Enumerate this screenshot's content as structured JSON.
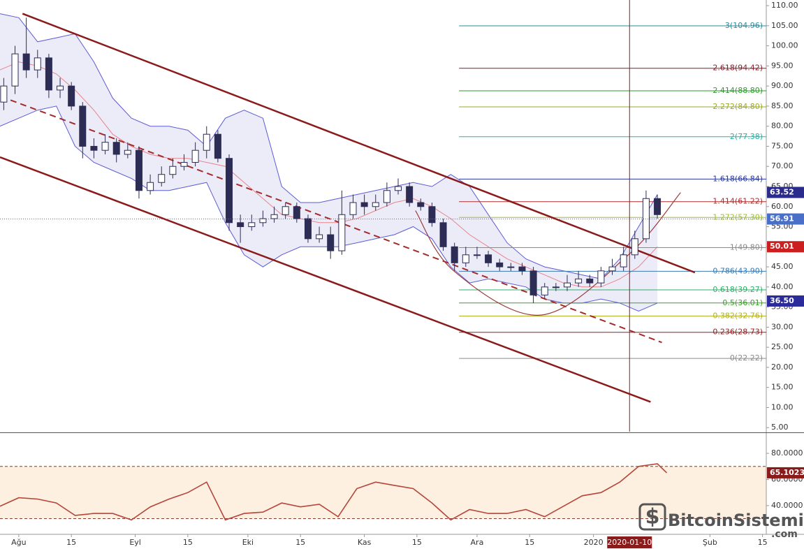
{
  "chart_data": [
    {
      "type": "candlestick",
      "x": [
        -4,
        -1,
        2,
        5,
        8,
        11,
        14,
        17,
        20,
        23,
        26,
        29,
        32,
        35,
        38,
        41,
        44,
        47,
        50,
        53,
        56,
        59,
        62,
        65,
        68,
        71,
        74,
        77,
        80,
        83,
        86,
        89,
        92,
        95,
        98,
        101,
        104,
        107,
        110,
        113,
        116,
        119,
        122,
        125,
        128,
        131,
        134,
        137,
        140,
        143,
        146,
        149,
        152,
        155,
        158,
        161,
        164,
        167,
        170
      ],
      "open": [
        86,
        90,
        98,
        94,
        97,
        89,
        90,
        85,
        75,
        74,
        76,
        73,
        74,
        64,
        66,
        68,
        70,
        71,
        74,
        78,
        72,
        56,
        55,
        56,
        57,
        58,
        60,
        57,
        52,
        53,
        49,
        58,
        61,
        60,
        61,
        64,
        65,
        61,
        60,
        56,
        50,
        46,
        48,
        48,
        46,
        45,
        45,
        44,
        38,
        40,
        40,
        41,
        42,
        41,
        44,
        45,
        48,
        52,
        62
      ],
      "high": [
        92,
        100,
        107,
        99,
        98,
        92,
        91,
        86,
        77,
        78,
        77,
        76,
        75,
        68,
        70,
        72,
        73,
        76,
        80,
        79,
        73,
        58,
        58,
        59,
        60,
        61,
        61,
        58,
        55,
        55,
        64,
        63,
        63,
        63,
        66,
        67,
        66,
        62,
        61,
        57,
        51,
        50,
        50,
        49,
        47,
        46,
        46,
        45,
        41,
        41,
        43,
        44,
        43,
        45,
        47,
        50,
        54,
        64,
        63
      ],
      "low": [
        84,
        88,
        92,
        92,
        87,
        87,
        84,
        72,
        72,
        73,
        71,
        72,
        62,
        63,
        65,
        67,
        69,
        70,
        72,
        71,
        54,
        51,
        54,
        55,
        56,
        57,
        56,
        51,
        51,
        47,
        48,
        57,
        58,
        59,
        60,
        63,
        60,
        59,
        55,
        49,
        44,
        45,
        47,
        45,
        44,
        44,
        43,
        36,
        37,
        39,
        39,
        40,
        40,
        40,
        43,
        44,
        47,
        51,
        57
      ],
      "close": [
        90,
        98,
        94,
        97,
        89,
        90,
        85,
        75,
        74,
        76,
        73,
        74,
        64,
        66,
        68,
        70,
        71,
        74,
        78,
        72,
        56,
        55,
        56,
        57,
        58,
        60,
        57,
        52,
        53,
        49,
        58,
        61,
        60,
        61,
        64,
        65,
        61,
        60,
        56,
        50,
        46,
        48,
        48,
        46,
        45,
        45,
        44,
        38,
        40,
        40,
        41,
        42,
        41,
        44,
        45,
        48,
        52,
        62,
        58
      ],
      "up_color": "#ffffff",
      "down_color": "#2c2c54",
      "xlim": [
        -5,
        199
      ],
      "ylim": [
        4,
        111.4
      ],
      "yticks": [
        {
          "value": 5,
          "label": "5.00"
        },
        {
          "value": 10,
          "label": "10.00"
        },
        {
          "value": 15,
          "label": "15.00"
        },
        {
          "value": 20,
          "label": "20.00"
        },
        {
          "value": 25,
          "label": "25.00"
        },
        {
          "value": 30,
          "label": "30.00"
        },
        {
          "value": 35,
          "label": "35.00"
        },
        {
          "value": 40,
          "label": "40.00"
        },
        {
          "value": 45,
          "label": "45.00"
        },
        {
          "value": 50,
          "label": "50.00"
        },
        {
          "value": 55,
          "label": "55.00"
        },
        {
          "value": 60,
          "label": "60.00"
        },
        {
          "value": 65,
          "label": "65.00"
        },
        {
          "value": 70,
          "label": "70.00"
        },
        {
          "value": 75,
          "label": "75.00"
        },
        {
          "value": 80,
          "label": "80.00"
        },
        {
          "value": 85,
          "label": "85.00"
        },
        {
          "value": 90,
          "label": "90.00"
        },
        {
          "value": 95,
          "label": "95.00"
        },
        {
          "value": 100,
          "label": "100.00"
        },
        {
          "value": 105,
          "label": "105.00"
        },
        {
          "value": 110,
          "label": "110.00"
        }
      ],
      "bollinger": {
        "x": [
          -5,
          0,
          5,
          10,
          15,
          20,
          25,
          30,
          35,
          40,
          45,
          50,
          55,
          60,
          65,
          70,
          75,
          80,
          85,
          90,
          95,
          100,
          105,
          110,
          115,
          120,
          125,
          130,
          135,
          140,
          145,
          150,
          155,
          160,
          165,
          170
        ],
        "upper": [
          108,
          107,
          101,
          102,
          103,
          96,
          87,
          82,
          80,
          80,
          79,
          75,
          82,
          84,
          82,
          65,
          61,
          61,
          62,
          63,
          64,
          65,
          66,
          65,
          68,
          65,
          58,
          51,
          47,
          45,
          44,
          43,
          42,
          47,
          55,
          63
        ],
        "middle": [
          94,
          96,
          95,
          93,
          89,
          84,
          78,
          75,
          73,
          72,
          72,
          71,
          70,
          66,
          62,
          58,
          57,
          56,
          56,
          57,
          59,
          61,
          62,
          60,
          57,
          53,
          50,
          47,
          45,
          43,
          41,
          40,
          40,
          42,
          45,
          50
        ],
        "lower": [
          80,
          82,
          84,
          85,
          75,
          71,
          69,
          67,
          64,
          64,
          65,
          66,
          56,
          48,
          45,
          48,
          50,
          50,
          50,
          51,
          52,
          53,
          55,
          52,
          45,
          41,
          42,
          41,
          40,
          37,
          36,
          36,
          37,
          36,
          34,
          36
        ],
        "color": "#5b5bd6",
        "fill": "#e4e4f6",
        "middle_color": "#e8838a"
      },
      "trendlines": [
        {
          "x": [
            1,
            180
          ],
          "y": [
            108,
            43.6
          ],
          "color": "#8b1a1a",
          "dashed": false
        },
        {
          "x": [
            -5,
            168.2
          ],
          "y": [
            72.3,
            11.4
          ],
          "color": "#8b1a1a",
          "dashed": false
        },
        {
          "x": [
            -2.2,
            171.2
          ],
          "y": [
            86.5,
            26.2
          ],
          "color": "#a52a2a",
          "dashed": true
        }
      ],
      "arc": {
        "x": [
          105.6,
          115.8,
          139,
          162.3,
          176.2
        ],
        "y": [
          59,
          44,
          33,
          48,
          63.5
        ],
        "color": "#9b3a3a"
      },
      "fib_start": 117.2,
      "fib_levels": [
        {
          "value": 104.96,
          "label": "3(104.96)",
          "color": "#2a8a9a"
        },
        {
          "value": 94.42,
          "label": "2.618(94.42)",
          "color": "#8b1a2a"
        },
        {
          "value": 88.8,
          "label": "2.414(88.80)",
          "color": "#2e9a2e"
        },
        {
          "value": 84.8,
          "label": "2.272(84.80)",
          "color": "#9aa82a"
        },
        {
          "value": 77.38,
          "label": "2(77.38)",
          "color": "#2ab0a0"
        },
        {
          "value": 66.84,
          "label": "1.618(66.84)",
          "color": "#2a3a9a"
        },
        {
          "value": 61.22,
          "label": "1.414(61.22)",
          "color": "#b02a2a"
        },
        {
          "value": 57.3,
          "label": "1.272(57.30)",
          "color": "#9ac02a"
        },
        {
          "value": 49.8,
          "label": "1(49.80)",
          "color": "#8a8a8a"
        },
        {
          "value": 43.9,
          "label": "0.786(43.90)",
          "color": "#3a7ab0"
        },
        {
          "value": 39.27,
          "label": "0.618(39.27)",
          "color": "#2ab06a"
        },
        {
          "value": 36.01,
          "label": "0.5(36.01)",
          "color": "#3aa02a"
        },
        {
          "value": 32.76,
          "label": "0.382(32.76)",
          "color": "#b0b02a"
        },
        {
          "value": 28.73,
          "label": "0.236(28.73)",
          "color": "#9a1a1a"
        },
        {
          "value": 22.22,
          "label": "0(22.22)",
          "color": "#8a8a8a"
        }
      ],
      "price_tags": [
        {
          "value": 63.52,
          "color": "#2b2b8c"
        },
        {
          "value": 56.91,
          "color": "#4a6fc8",
          "line": true
        },
        {
          "value": 50.01,
          "color": "#cc1f1f"
        },
        {
          "value": 36.5,
          "label": "36.50",
          "color": "#2b2b9c"
        }
      ],
      "crosshair": {
        "x": 162.6,
        "label": "2020-01-10",
        "color": "#8b1a1a"
      }
    },
    {
      "type": "line",
      "x": [
        -5,
        0,
        5,
        10,
        15,
        20,
        25,
        30,
        35,
        40,
        45,
        50,
        55,
        60,
        65,
        70,
        75,
        80,
        85,
        90,
        95,
        100,
        105,
        110,
        115,
        120,
        125,
        130,
        135,
        140,
        145,
        150,
        155,
        160,
        165,
        170,
        172.5
      ],
      "values": [
        39.5,
        46,
        45,
        42,
        32.5,
        34,
        34,
        29,
        39,
        45,
        50,
        58,
        29,
        34,
        35,
        42,
        39,
        41,
        31.5,
        53,
        58,
        55.5,
        53,
        42,
        29,
        37,
        34,
        34,
        37,
        31.5,
        39.5,
        47.5,
        50,
        58,
        70,
        72,
        65.1023
      ],
      "color": "#b5453a",
      "xlim": [
        -5,
        199
      ],
      "ylim": [
        18,
        95
      ],
      "yticks": [
        {
          "value": 40,
          "label": "40.0000"
        },
        {
          "value": 60,
          "label": "60.0000"
        },
        {
          "value": 80,
          "label": "80.0000"
        }
      ],
      "levels": [
        30,
        70
      ],
      "level_fill": "#fdf0e0",
      "level_color": "#8b3a2a",
      "price_tags": [
        {
          "value": 65.1023,
          "color": "#8b1a1a"
        }
      ],
      "xticks": [
        {
          "value": 0,
          "label": "Ağu"
        },
        {
          "value": 14,
          "label": "15"
        },
        {
          "value": 31,
          "label": "Eyl"
        },
        {
          "value": 45,
          "label": "15"
        },
        {
          "value": 61,
          "label": "Eki"
        },
        {
          "value": 75,
          "label": "15"
        },
        {
          "value": 92,
          "label": "Kas"
        },
        {
          "value": 106,
          "label": "15"
        },
        {
          "value": 122,
          "label": "Ara"
        },
        {
          "value": 136,
          "label": "15"
        },
        {
          "value": 153,
          "label": "2020"
        },
        {
          "value": 184,
          "label": "Şub"
        },
        {
          "value": 198,
          "label": "15"
        }
      ]
    }
  ],
  "watermark": {
    "name": "BitcoinSistemi",
    "domain": ".com"
  }
}
